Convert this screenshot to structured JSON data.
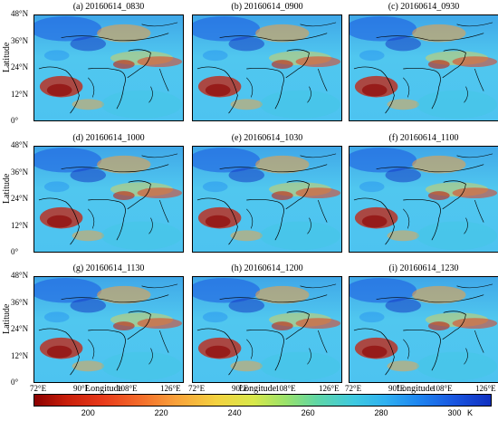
{
  "panels": [
    {
      "title": "(a) 20160614_0830"
    },
    {
      "title": "(b) 20160614_0900"
    },
    {
      "title": "(c) 20160614_0930"
    },
    {
      "title": "(d) 20160614_1000"
    },
    {
      "title": "(e) 20160614_1030"
    },
    {
      "title": "(f) 20160614_1100"
    },
    {
      "title": "(g) 20160614_1130"
    },
    {
      "title": "(h) 20160614_1200"
    },
    {
      "title": "(i) 20160614_1230"
    }
  ],
  "yticks": [
    "48°N",
    "36°N",
    "24°N",
    "12°N",
    "0°"
  ],
  "xticks": [
    "72°E",
    "90°E",
    "108°E",
    "126°E"
  ],
  "ylabel": "Latitude",
  "xlabel": "Longitude",
  "colorbar": {
    "ticks": [
      "200",
      "220",
      "240",
      "260",
      "280",
      "300"
    ],
    "unit": "K",
    "range": [
      185,
      310
    ]
  },
  "colors": {
    "cold": "#1030c0",
    "mid": "#4dc3f0",
    "warm": "#f3d23f",
    "hot": "#8b0000"
  }
}
